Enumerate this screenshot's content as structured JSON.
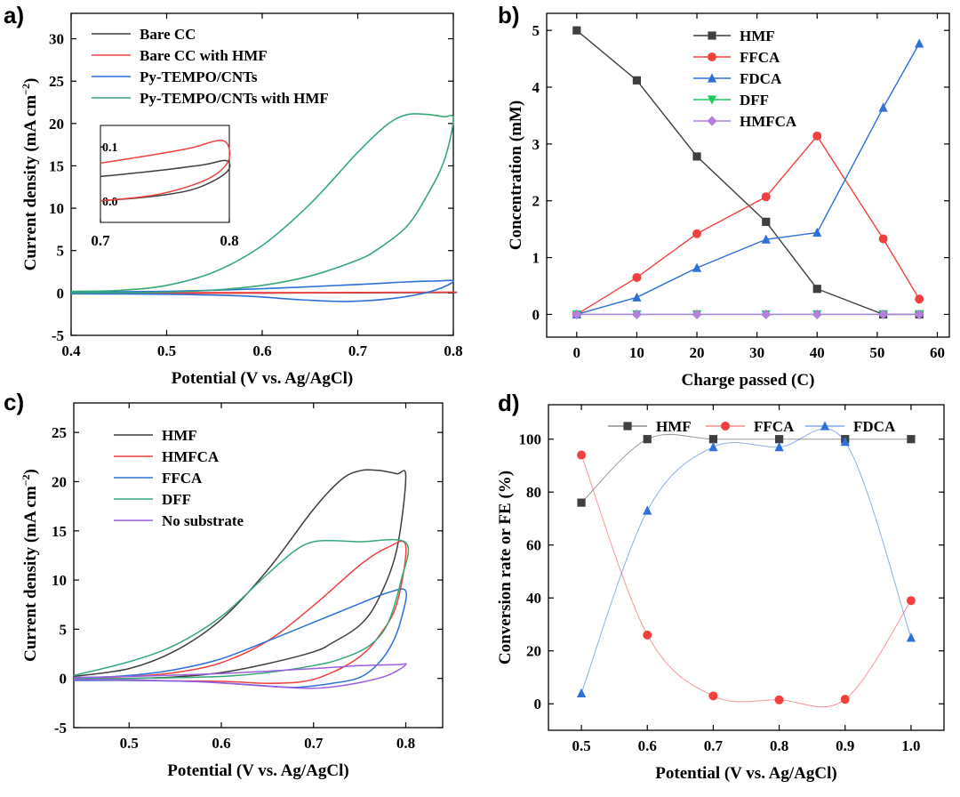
{
  "colors": {
    "black": "#3f3f3f",
    "red": "#f0413f",
    "blue": "#2e6fd8",
    "green": "#36a878",
    "purple": "#9b5fe0",
    "cyan": "#29d3e8",
    "dff_green": "#1fc95a",
    "hmfca_violet": "#b57fe0"
  },
  "chart_data": [
    {
      "panel": "a)",
      "type": "line",
      "subtype": "cyclic-voltammetry",
      "xlabel": "Potential (V vs. Ag/AgCl)",
      "ylabel_text": "Current density (mA cm",
      "ylabel_sup": "−2",
      "ylabel_close": ")",
      "xlim": [
        0.4,
        0.8
      ],
      "ylim": [
        -5,
        33
      ],
      "xticks": [
        "0.4",
        "0.5",
        "0.6",
        "0.7",
        "0.8"
      ],
      "yticks": [
        "-5",
        "0",
        "5",
        "10",
        "15",
        "20",
        "25",
        "30"
      ],
      "legend_position": "top-left",
      "series": [
        {
          "name": "Bare CC",
          "color": "#3f3f3f",
          "forward": [
            [
              0.4,
              0.0
            ],
            [
              0.7,
              0.02
            ],
            [
              0.8,
              0.06
            ]
          ],
          "reverse": [
            [
              0.8,
              0.06
            ],
            [
              0.6,
              0.0
            ],
            [
              0.4,
              -0.02
            ]
          ]
        },
        {
          "name": "Bare CC with HMF",
          "color": "#f0413f",
          "forward": [
            [
              0.4,
              0.02
            ],
            [
              0.7,
              0.06
            ],
            [
              0.8,
              0.1
            ]
          ],
          "reverse": [
            [
              0.8,
              0.1
            ],
            [
              0.6,
              0.0
            ],
            [
              0.4,
              -0.02
            ]
          ]
        },
        {
          "name": "Py-TEMPO/CNTs",
          "color": "#2e6fd8",
          "forward": [
            [
              0.4,
              0.1
            ],
            [
              0.5,
              0.2
            ],
            [
              0.6,
              0.5
            ],
            [
              0.7,
              1.0
            ],
            [
              0.75,
              1.3
            ],
            [
              0.78,
              1.4
            ],
            [
              0.8,
              1.4
            ]
          ],
          "reverse": [
            [
              0.8,
              1.4
            ],
            [
              0.78,
              0.3
            ],
            [
              0.74,
              -0.6
            ],
            [
              0.69,
              -1.0
            ],
            [
              0.64,
              -0.8
            ],
            [
              0.58,
              -0.35
            ],
            [
              0.5,
              -0.15
            ],
            [
              0.4,
              -0.1
            ]
          ]
        },
        {
          "name": "Py-TEMPO/CNTs with HMF",
          "color": "#36a878",
          "forward": [
            [
              0.4,
              0.2
            ],
            [
              0.45,
              0.3
            ],
            [
              0.5,
              0.9
            ],
            [
              0.55,
              2.5
            ],
            [
              0.6,
              5.6
            ],
            [
              0.65,
              10.5
            ],
            [
              0.7,
              16.6
            ],
            [
              0.73,
              19.8
            ],
            [
              0.75,
              21.0
            ],
            [
              0.77,
              21.1
            ],
            [
              0.79,
              20.8
            ],
            [
              0.8,
              20.5
            ]
          ],
          "reverse": [
            [
              0.8,
              20.5
            ],
            [
              0.79,
              15.5
            ],
            [
              0.77,
              11.0
            ],
            [
              0.75,
              7.7
            ],
            [
              0.72,
              5.1
            ],
            [
              0.7,
              3.9
            ],
            [
              0.65,
              2.0
            ],
            [
              0.6,
              0.9
            ],
            [
              0.55,
              0.35
            ],
            [
              0.5,
              0.1
            ],
            [
              0.4,
              0.0
            ]
          ]
        }
      ],
      "inset": {
        "xlim": [
          0.7,
          0.8
        ],
        "ylim": [
          -0.04,
          0.14
        ],
        "xticks": [
          "0.7",
          "0.8"
        ],
        "yticks": [
          "0.0",
          "0.1"
        ],
        "series": [
          {
            "name": "Bare CC",
            "color": "#3f3f3f",
            "forward": [
              [
                0.7,
                0.045
              ],
              [
                0.74,
                0.055
              ],
              [
                0.78,
                0.067
              ],
              [
                0.797,
                0.075
              ]
            ],
            "reverse": [
              [
                0.797,
                0.075
              ],
              [
                0.8,
                0.06
              ],
              [
                0.79,
                0.04
              ],
              [
                0.77,
                0.02
              ],
              [
                0.74,
                0.008
              ],
              [
                0.7,
                0.0
              ]
            ]
          },
          {
            "name": "Bare CC with HMF",
            "color": "#f0413f",
            "forward": [
              [
                0.7,
                0.07
              ],
              [
                0.74,
                0.085
              ],
              [
                0.77,
                0.098
              ],
              [
                0.795,
                0.112
              ]
            ],
            "reverse": [
              [
                0.795,
                0.112
              ],
              [
                0.8,
                0.08
              ],
              [
                0.79,
                0.05
              ],
              [
                0.77,
                0.028
              ],
              [
                0.74,
                0.01
              ],
              [
                0.7,
                0.0
              ]
            ]
          }
        ]
      }
    },
    {
      "panel": "b)",
      "type": "line",
      "xlabel": "Charge passed (C)",
      "ylabel": "Concentration (mM)",
      "xlim": [
        -5,
        62
      ],
      "ylim": [
        -0.4,
        5.3
      ],
      "xticks": [
        "0",
        "10",
        "20",
        "30",
        "40",
        "50",
        "60"
      ],
      "yticks": [
        "0",
        "1",
        "2",
        "3",
        "4",
        "5"
      ],
      "x": [
        0,
        10,
        20,
        31.5,
        40,
        51,
        57
      ],
      "legend_position": "top-center",
      "series": [
        {
          "name": "HMF",
          "marker": "square",
          "color": "#3f3f3f",
          "values": [
            5.0,
            4.12,
            2.78,
            1.63,
            0.45,
            0.0,
            0.0
          ]
        },
        {
          "name": "FFCA",
          "marker": "circle",
          "color": "#f0413f",
          "values": [
            0.0,
            0.65,
            1.42,
            2.07,
            3.14,
            1.33,
            0.27
          ]
        },
        {
          "name": "FDCA",
          "marker": "triangle",
          "color": "#2e6fd8",
          "values": [
            0.0,
            0.3,
            0.82,
            1.32,
            1.44,
            3.64,
            4.77
          ]
        },
        {
          "name": "DFF",
          "marker": "triangle-down",
          "color": "#1fc95a",
          "values": [
            0,
            0,
            0,
            0,
            0,
            0,
            0
          ]
        },
        {
          "name": "HMFCA",
          "marker": "diamond",
          "color": "#b57fe0",
          "values": [
            0,
            0,
            0,
            0,
            0,
            0,
            0
          ]
        }
      ]
    },
    {
      "panel": "c)",
      "type": "line",
      "subtype": "cyclic-voltammetry",
      "xlabel": "Potential (V vs. Ag/AgCl)",
      "ylabel_text": "Current density (mA cm",
      "ylabel_sup": "−2",
      "ylabel_close": ")",
      "xlim": [
        0.44,
        0.84
      ],
      "ylim": [
        -5,
        28
      ],
      "xticks": [
        "0.5",
        "0.6",
        "0.7",
        "0.8"
      ],
      "yticks": [
        "-5",
        "0",
        "5",
        "10",
        "15",
        "20",
        "25"
      ],
      "legend_position": "top-left",
      "series": [
        {
          "name": "HMF",
          "color": "#3f3f3f",
          "forward": [
            [
              0.44,
              0.2
            ],
            [
              0.5,
              1.0
            ],
            [
              0.55,
              2.8
            ],
            [
              0.6,
              6.0
            ],
            [
              0.65,
              11.0
            ],
            [
              0.7,
              17.2
            ],
            [
              0.73,
              20.2
            ],
            [
              0.75,
              21.1
            ],
            [
              0.77,
              21.15
            ],
            [
              0.79,
              20.8
            ],
            [
              0.8,
              20.5
            ]
          ],
          "reverse": [
            [
              0.8,
              20.5
            ],
            [
              0.79,
              13.0
            ],
            [
              0.77,
              8.0
            ],
            [
              0.75,
              5.4
            ],
            [
              0.72,
              3.6
            ],
            [
              0.7,
              2.7
            ],
            [
              0.65,
              1.5
            ],
            [
              0.6,
              0.6
            ],
            [
              0.55,
              0.15
            ],
            [
              0.5,
              0.0
            ],
            [
              0.44,
              -0.1
            ]
          ]
        },
        {
          "name": "HMFCA",
          "color": "#f0413f",
          "forward": [
            [
              0.44,
              0.0
            ],
            [
              0.5,
              0.2
            ],
            [
              0.55,
              0.6
            ],
            [
              0.6,
              1.6
            ],
            [
              0.65,
              3.8
            ],
            [
              0.7,
              7.4
            ],
            [
              0.75,
              11.5
            ],
            [
              0.78,
              13.3
            ],
            [
              0.8,
              13.5
            ]
          ],
          "reverse": [
            [
              0.8,
              13.5
            ],
            [
              0.79,
              7.5
            ],
            [
              0.77,
              4.2
            ],
            [
              0.75,
              2.2
            ],
            [
              0.72,
              0.6
            ],
            [
              0.69,
              -0.3
            ],
            [
              0.65,
              -0.5
            ],
            [
              0.6,
              -0.3
            ],
            [
              0.5,
              -0.2
            ],
            [
              0.44,
              -0.2
            ]
          ]
        },
        {
          "name": "FFCA",
          "color": "#2e6fd8",
          "forward": [
            [
              0.44,
              0.0
            ],
            [
              0.5,
              0.3
            ],
            [
              0.55,
              0.9
            ],
            [
              0.6,
              2.0
            ],
            [
              0.65,
              3.8
            ],
            [
              0.7,
              5.7
            ],
            [
              0.75,
              7.6
            ],
            [
              0.78,
              8.7
            ],
            [
              0.8,
              8.9
            ]
          ],
          "reverse": [
            [
              0.8,
              8.9
            ],
            [
              0.795,
              6.0
            ],
            [
              0.785,
              3.5
            ],
            [
              0.77,
              1.5
            ],
            [
              0.75,
              0.1
            ],
            [
              0.72,
              -0.5
            ],
            [
              0.68,
              -0.9
            ],
            [
              0.64,
              -0.7
            ],
            [
              0.58,
              -0.35
            ],
            [
              0.5,
              -0.2
            ],
            [
              0.44,
              -0.2
            ]
          ]
        },
        {
          "name": "DFF",
          "color": "#36a878",
          "forward": [
            [
              0.44,
              0.3
            ],
            [
              0.5,
              1.7
            ],
            [
              0.55,
              3.4
            ],
            [
              0.6,
              6.3
            ],
            [
              0.65,
              10.6
            ],
            [
              0.68,
              13.0
            ],
            [
              0.7,
              13.9
            ],
            [
              0.72,
              14.0
            ],
            [
              0.75,
              13.9
            ],
            [
              0.8,
              13.8
            ]
          ],
          "reverse": [
            [
              0.8,
              13.8
            ],
            [
              0.795,
              10.0
            ],
            [
              0.78,
              5.5
            ],
            [
              0.76,
              3.3
            ],
            [
              0.73,
              2.0
            ],
            [
              0.7,
              1.3
            ],
            [
              0.65,
              0.6
            ],
            [
              0.6,
              0.2
            ],
            [
              0.5,
              0.0
            ],
            [
              0.44,
              0.0
            ]
          ]
        },
        {
          "name": "No substrate",
          "color": "#9b5fe0",
          "forward": [
            [
              0.44,
              0.1
            ],
            [
              0.5,
              0.2
            ],
            [
              0.6,
              0.5
            ],
            [
              0.7,
              1.0
            ],
            [
              0.75,
              1.3
            ],
            [
              0.79,
              1.4
            ],
            [
              0.8,
              1.4
            ]
          ],
          "reverse": [
            [
              0.8,
              1.4
            ],
            [
              0.78,
              0.3
            ],
            [
              0.74,
              -0.6
            ],
            [
              0.7,
              -1.0
            ],
            [
              0.65,
              -0.8
            ],
            [
              0.58,
              -0.35
            ],
            [
              0.5,
              -0.15
            ],
            [
              0.44,
              -0.1
            ]
          ]
        }
      ]
    },
    {
      "panel": "d)",
      "type": "line",
      "xlabel": "Potential (V vs. Ag/AgCl)",
      "ylabel": "Conversion rate or FE (%)",
      "xlim": [
        0.45,
        1.05
      ],
      "ylim": [
        -10,
        113
      ],
      "xticks": [
        "0.5",
        "0.6",
        "0.7",
        "0.8",
        "0.9",
        "1.0"
      ],
      "yticks": [
        "0",
        "20",
        "40",
        "60",
        "80",
        "100"
      ],
      "x": [
        0.5,
        0.6,
        0.7,
        0.8,
        0.9,
        1.0
      ],
      "legend_position": "top",
      "series": [
        {
          "name": "HMF",
          "marker": "square",
          "color": "#3f3f3f",
          "values": [
            76,
            100,
            100,
            100,
            100,
            100
          ]
        },
        {
          "name": "FFCA",
          "marker": "circle",
          "color": "#f0413f",
          "values": [
            94,
            26,
            3,
            1.5,
            1.7,
            39
          ]
        },
        {
          "name": "FDCA",
          "marker": "triangle",
          "color": "#2e6fd8",
          "values": [
            4,
            73,
            97,
            97,
            99,
            25
          ]
        }
      ]
    }
  ]
}
